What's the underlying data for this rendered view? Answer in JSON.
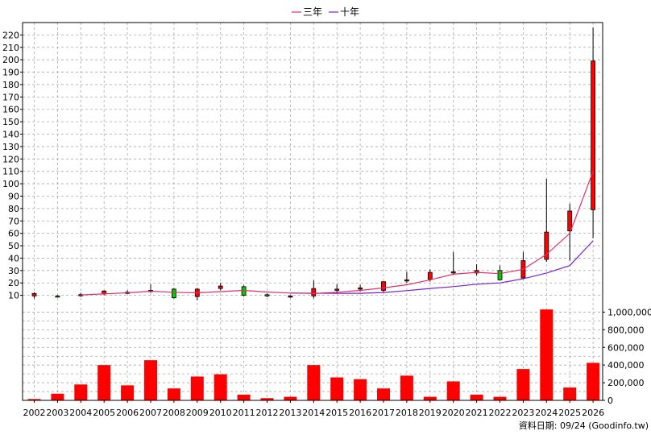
{
  "chart_data": {
    "type": "candlestick-volume",
    "legend": [
      {
        "name": "三年",
        "color": "#e0306a"
      },
      {
        "name": "十年",
        "color": "#7a1fd0"
      }
    ],
    "source_note": "資料日期: 09/24 (Goodinfo.tw)",
    "price_axis": {
      "min": 0,
      "max": 230,
      "ticks": [
        10,
        20,
        30,
        40,
        50,
        60,
        70,
        80,
        90,
        100,
        110,
        120,
        130,
        140,
        150,
        160,
        170,
        180,
        190,
        200,
        210,
        220
      ]
    },
    "volume_axis": {
      "min": 0,
      "max": 1150000,
      "ticks": [
        0,
        200000,
        400000,
        600000,
        800000,
        1000000
      ],
      "tick_labels": [
        "0",
        "200,000",
        "400,000",
        "600,000",
        "800,000",
        "1,000,000"
      ]
    },
    "categories": [
      "2002",
      "2003",
      "2004",
      "2005",
      "2006",
      "2007",
      "2008",
      "2009",
      "2010",
      "2011",
      "2012",
      "2013",
      "2014",
      "2015",
      "2016",
      "2017",
      "2018",
      "2019",
      "2020",
      "2021",
      "2022",
      "2023",
      "2024",
      "2025",
      "2026"
    ],
    "ohlc": [
      {
        "o": 9.5,
        "h": 12.5,
        "l": 7.5,
        "c": 11.5
      },
      {
        "o": 9.5,
        "h": 10.2,
        "l": 8.3,
        "c": 9.0
      },
      {
        "o": 10.0,
        "h": 12.0,
        "l": 8.8,
        "c": 10.6
      },
      {
        "o": 11.0,
        "h": 14.0,
        "l": 10.0,
        "c": 13.5
      },
      {
        "o": 12.0,
        "h": 14.0,
        "l": 11.0,
        "c": 12.5
      },
      {
        "o": 13.0,
        "h": 19.0,
        "l": 12.0,
        "c": 14.0
      },
      {
        "o": 15.0,
        "h": 16.0,
        "l": 7.5,
        "c": 8.0
      },
      {
        "o": 9.0,
        "h": 16.0,
        "l": 6.0,
        "c": 15.0
      },
      {
        "o": 15.5,
        "h": 20.0,
        "l": 14.0,
        "c": 17.5
      },
      {
        "o": 17.0,
        "h": 18.0,
        "l": 9.0,
        "c": 10.0
      },
      {
        "o": 10.5,
        "h": 11.5,
        "l": 8.5,
        "c": 9.5
      },
      {
        "o": 9.0,
        "h": 10.0,
        "l": 8.0,
        "c": 9.5
      },
      {
        "o": 9.5,
        "h": 22.0,
        "l": 7.5,
        "c": 15.5
      },
      {
        "o": 14.5,
        "h": 19.0,
        "l": 11.5,
        "c": 15.0
      },
      {
        "o": 15.0,
        "h": 18.5,
        "l": 13.0,
        "c": 16.0
      },
      {
        "o": 14.0,
        "h": 21.0,
        "l": 12.0,
        "c": 21.0
      },
      {
        "o": 22.0,
        "h": 29.0,
        "l": 20.0,
        "c": 22.5
      },
      {
        "o": 23.0,
        "h": 31.0,
        "l": 21.0,
        "c": 28.5
      },
      {
        "o": 28.5,
        "h": 45.0,
        "l": 27.0,
        "c": 29.0
      },
      {
        "o": 28.0,
        "h": 35.0,
        "l": 26.0,
        "c": 30.0
      },
      {
        "o": 30.0,
        "h": 34.0,
        "l": 22.0,
        "c": 22.5
      },
      {
        "o": 24.0,
        "h": 45.0,
        "l": 23.0,
        "c": 38.0
      },
      {
        "o": 39.0,
        "h": 104.0,
        "l": 37.0,
        "c": 61.0
      },
      {
        "o": 62.0,
        "h": 84.0,
        "l": 38.0,
        "c": 78.0
      },
      {
        "o": 79.0,
        "h": 226.0,
        "l": 56.0,
        "c": 199.0
      }
    ],
    "ma_3yr": [
      null,
      null,
      10.3,
      11.2,
      12.0,
      13.3,
      12.5,
      12.0,
      13.0,
      14.0,
      12.7,
      11.8,
      11.5,
      12.5,
      14.0,
      16.0,
      18.5,
      22.5,
      27.0,
      28.5,
      27.5,
      31.0,
      43.0,
      60.0,
      110.0
    ],
    "ma_10yr": [
      null,
      null,
      null,
      null,
      null,
      null,
      null,
      null,
      null,
      null,
      null,
      11.9,
      11.7,
      11.6,
      11.6,
      12.3,
      13.8,
      15.5,
      17.0,
      19.0,
      20.0,
      23.3,
      28.0,
      34.0,
      54.0
    ],
    "volume": [
      15000,
      75000,
      180000,
      400000,
      170000,
      455000,
      135000,
      270000,
      295000,
      65000,
      25000,
      40000,
      400000,
      260000,
      240000,
      135000,
      280000,
      40000,
      215000,
      65000,
      40000,
      355000,
      1030000,
      145000,
      425000
    ]
  }
}
